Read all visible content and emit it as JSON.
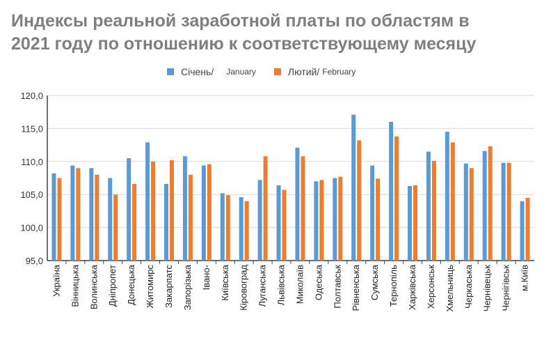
{
  "title_line1": "Индексы реальной заработной платы по областям в",
  "title_line2": "2021 году по отношению к соответствующему месяцу",
  "legend": {
    "jan_ua": "Січень/",
    "jan_en": "January",
    "feb_ua": "Лютий/",
    "feb_en": "February"
  },
  "colors": {
    "jan": "#5b9bd5",
    "feb": "#ed7d31",
    "grid": "#d9d9d9",
    "axis": "#404040"
  },
  "chart_data": {
    "type": "bar",
    "title": "Индексы реальной заработной платы по областям в 2021 году по отношению к соответствующему месяцу",
    "categories": [
      "Україна",
      "Вінницька",
      "Волинська",
      "Дніпропет",
      "Донецька",
      "Житомирс",
      "Закарпатс",
      "Запорізька",
      "Івано-",
      "Київська",
      "Кіровоград",
      "Луганська",
      "Львівська",
      "Миколаїв",
      "Одеська",
      "Полтавськ",
      "Рівненська",
      "Сумська",
      "Тернопіль",
      "Харківська",
      "Херсонськ",
      "Хмельниць",
      "Черкаська",
      "Чернівецьк",
      "Чернігівськ",
      "м.Київ"
    ],
    "series": [
      {
        "name": "Січень/ January",
        "values": [
          108.2,
          109.4,
          109.0,
          107.5,
          110.5,
          112.9,
          106.6,
          110.8,
          109.4,
          105.2,
          104.6,
          107.2,
          106.4,
          112.1,
          107.0,
          107.5,
          117.1,
          109.4,
          116.0,
          106.3,
          111.5,
          114.5,
          109.7,
          111.6,
          109.8,
          104.0
        ]
      },
      {
        "name": "Лютий/ February",
        "values": [
          107.5,
          109.0,
          108.0,
          105.0,
          106.6,
          110.0,
          110.2,
          108.0,
          109.6,
          104.9,
          104.0,
          110.8,
          105.7,
          110.8,
          107.2,
          107.7,
          113.2,
          107.4,
          113.8,
          106.4,
          110.1,
          112.9,
          109.0,
          112.3,
          109.8,
          104.5
        ]
      }
    ],
    "ylim": [
      95,
      120
    ],
    "yticks": [
      "95,0",
      "100,0",
      "105,0",
      "110,0",
      "115,0",
      "120,0"
    ],
    "grid": true,
    "legend_position": "top"
  }
}
